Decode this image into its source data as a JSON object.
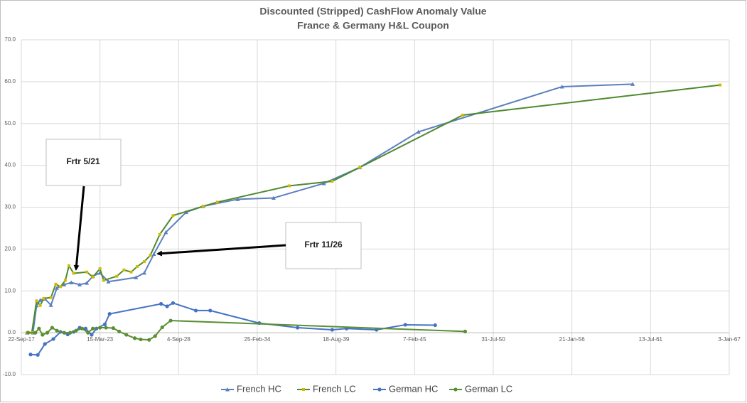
{
  "chart_data": {
    "type": "line",
    "title": [
      "Discounted (Stripped) CashFlow Anomaly Value",
      "France & Germany H&L Coupon"
    ],
    "xlim": [
      "2017-09-22",
      "2067-01-03"
    ],
    "xticks": [
      {
        "value": "2017-09-22",
        "label": "22-Sep-17"
      },
      {
        "value": "2023-03-15",
        "label": "15-Mar-23"
      },
      {
        "value": "2028-09-04",
        "label": "4-Sep-28"
      },
      {
        "value": "2034-02-25",
        "label": "25-Feb-34"
      },
      {
        "value": "2039-08-18",
        "label": "18-Aug-39"
      },
      {
        "value": "2045-02-07",
        "label": "7-Feb-45"
      },
      {
        "value": "2050-07-31",
        "label": "31-Jul-50"
      },
      {
        "value": "2056-01-21",
        "label": "21-Jan-56"
      },
      {
        "value": "2061-07-13",
        "label": "13-Jul-61"
      },
      {
        "value": "2067-01-03",
        "label": "3-Jan-67"
      }
    ],
    "ylim": [
      -10,
      70
    ],
    "yticks": [
      {
        "value": -10,
        "label": "-10.0"
      },
      {
        "value": 0,
        "label": "0.0"
      },
      {
        "value": 10,
        "label": "10.0"
      },
      {
        "value": 20,
        "label": "20.0"
      },
      {
        "value": 30,
        "label": "30.0"
      },
      {
        "value": 40,
        "label": "40.0"
      },
      {
        "value": 50,
        "label": "50.0"
      },
      {
        "value": 60,
        "label": "60.0"
      },
      {
        "value": 70,
        "label": "70.0"
      }
    ],
    "grid": true,
    "legend": "bottom",
    "series": [
      {
        "name": "French HC",
        "color": "#5b7fbf",
        "marker_color": "#5b7fbf",
        "marker": "triangle",
        "x": [
          "2018-02-15",
          "2018-07-15",
          "2018-10-15",
          "2019-01-15",
          "2019-05-15",
          "2019-10-15",
          "2020-03-15",
          "2020-09-15",
          "2021-03-15",
          "2021-10-15",
          "2022-04-15",
          "2022-09-15",
          "2023-03-15",
          "2023-10-15",
          "2025-09-15",
          "2026-04-15",
          "2026-12-15",
          "2027-10-15",
          "2029-03-15",
          "2030-05-15",
          "2032-10-15",
          "2035-04-15",
          "2038-10-15",
          "2041-04-15",
          "2045-05-15",
          "2055-05-15",
          "2060-04-15"
        ],
        "values": [
          0.0,
          0.0,
          6.5,
          7.8,
          8.1,
          6.6,
          10.7,
          11.5,
          12.0,
          11.5,
          11.9,
          13.5,
          14.3,
          12.2,
          13.2,
          14.3,
          18.8,
          24.0,
          28.8,
          30.2,
          31.9,
          32.2,
          35.7,
          39.5,
          48.0,
          58.8,
          59.4
        ]
      },
      {
        "name": "French LC",
        "color": "#4e8a2e",
        "marker_color": "#d4b800",
        "marker": "square",
        "x": [
          "2018-02-15",
          "2018-06-15",
          "2018-10-15",
          "2019-01-15",
          "2019-04-15",
          "2019-10-15",
          "2020-02-15",
          "2020-06-15",
          "2020-10-15",
          "2021-01-15",
          "2021-05-15",
          "2022-04-15",
          "2022-09-15",
          "2023-03-15",
          "2023-06-15",
          "2024-05-15",
          "2024-11-15",
          "2025-05-15",
          "2025-10-15",
          "2026-04-15",
          "2026-09-15",
          "2027-05-15",
          "2028-04-15",
          "2030-05-15",
          "2031-05-15",
          "2036-05-15",
          "2039-05-15",
          "2041-04-15",
          "2048-06-15",
          "2066-05-15"
        ],
        "values": [
          0.0,
          0.0,
          7.6,
          6.5,
          8.2,
          8.4,
          11.6,
          11.0,
          12.5,
          16.0,
          14.2,
          14.5,
          13.3,
          15.3,
          12.5,
          13.5,
          15.0,
          14.5,
          15.8,
          17.0,
          18.5,
          23.5,
          28.0,
          30.2,
          31.2,
          35.1,
          36.2,
          39.5,
          52.0,
          59.2
        ]
      },
      {
        "name": "German HC",
        "color": "#4472c4",
        "marker_color": "#4472c4",
        "marker": "circle",
        "x": [
          "2018-05-15",
          "2018-11-15",
          "2019-05-15",
          "2019-12-15",
          "2020-06-15",
          "2020-12-15",
          "2021-05-15",
          "2021-10-15",
          "2022-03-15",
          "2022-08-15",
          "2022-12-15",
          "2023-07-15",
          "2023-11-15",
          "2027-06-15",
          "2027-11-15",
          "2028-04-15",
          "2029-11-15",
          "2030-11-15",
          "2034-04-15",
          "2036-12-15",
          "2039-05-15",
          "2040-05-15",
          "2042-06-15",
          "2044-06-15",
          "2046-07-15"
        ],
        "values": [
          -5.2,
          -5.3,
          -2.7,
          -1.5,
          0.2,
          -0.4,
          0.2,
          1.2,
          1.0,
          -0.5,
          1.0,
          2.0,
          4.5,
          6.9,
          6.3,
          7.1,
          5.3,
          5.3,
          2.3,
          1.2,
          0.7,
          1.0,
          0.7,
          1.9,
          1.8
        ]
      },
      {
        "name": "German LC",
        "color": "#5b8f33",
        "marker_color": "#5b8f33",
        "marker": "circle",
        "x": [
          "2018-03-15",
          "2018-09-15",
          "2018-12-15",
          "2019-03-15",
          "2019-07-15",
          "2019-11-15",
          "2020-03-15",
          "2020-09-15",
          "2021-02-15",
          "2021-07-15",
          "2021-12-15",
          "2022-05-15",
          "2022-09-15",
          "2023-03-15",
          "2023-08-15",
          "2024-02-15",
          "2024-07-15",
          "2025-01-15",
          "2025-08-15",
          "2026-01-15",
          "2026-08-15",
          "2027-01-15",
          "2027-07-15",
          "2028-02-15",
          "2048-08-15"
        ],
        "values": [
          0.0,
          0.0,
          1.0,
          -0.5,
          0.0,
          1.2,
          0.5,
          0.0,
          0.0,
          0.5,
          1.0,
          0.0,
          1.0,
          1.2,
          1.2,
          1.1,
          0.3,
          -0.5,
          -1.3,
          -1.6,
          -1.7,
          -0.8,
          1.3,
          2.9,
          0.3
        ]
      }
    ],
    "annotations": [
      "Frtr 5/21",
      "Frtr 11/26"
    ]
  }
}
